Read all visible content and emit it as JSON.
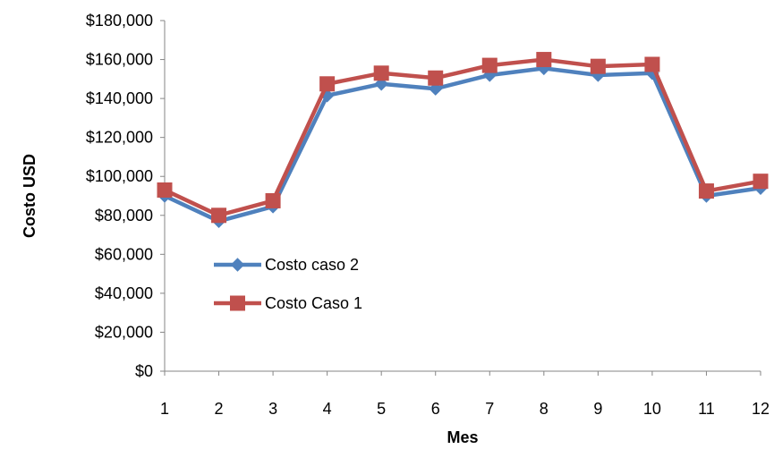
{
  "chart_data": {
    "type": "line",
    "xlabel": "Mes",
    "ylabel": "Costo USD",
    "x": [
      "1",
      "2",
      "3",
      "4",
      "5",
      "6",
      "7",
      "8",
      "9",
      "10",
      "11",
      "12"
    ],
    "ylim": [
      0,
      180000
    ],
    "yticks": [
      "$0",
      "$20,000",
      "$40,000",
      "$60,000",
      "$80,000",
      "$100,000",
      "$120,000",
      "$140,000",
      "$160,000",
      "$180,000"
    ],
    "grid": false,
    "legend_position": "lower-left inside plot",
    "series": [
      {
        "name": "Costo caso 2",
        "color": "#4F81BD",
        "marker": "diamond",
        "values": [
          90000,
          77000,
          84500,
          141500,
          147500,
          145000,
          152000,
          155500,
          152000,
          153000,
          90000,
          94000
        ]
      },
      {
        "name": "Costo Caso 1",
        "color": "#C0504D",
        "marker": "square",
        "values": [
          93000,
          80000,
          87500,
          147500,
          153000,
          150500,
          157000,
          160000,
          156500,
          157500,
          92500,
          97500
        ]
      }
    ]
  }
}
